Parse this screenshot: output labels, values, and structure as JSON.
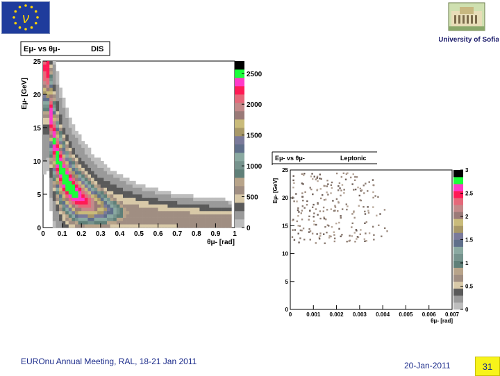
{
  "logos": {
    "eu_symbol": "ν",
    "university": "University of Sofia"
  },
  "footer": {
    "meeting": "EUROnu Annual Meeting, RAL, 18-21 Jan 2011",
    "date": "20-Jan-2011",
    "page": "31"
  },
  "colors": {
    "palette": [
      "#bdbdbd",
      "#9a9a9a",
      "#5a5a5a",
      "#d8c9a8",
      "#a08e82",
      "#b8a48a",
      "#5f7f78",
      "#76938d",
      "#8aa9a1",
      "#5f6f8a",
      "#7a7a9a",
      "#a89868",
      "#c9bb7a",
      "#9a7a78",
      "#c38a8a",
      "#e5687a",
      "#ff1a55",
      "#ff3ac8",
      "#1aff3a",
      "#000000"
    ]
  },
  "chart_data": [
    {
      "type": "heatmap",
      "title": "DIS",
      "stats_label": "Eμ- vs θμ-",
      "xlabel": "θμ- [rad]",
      "ylabel": "Eμ- [GeV]",
      "xlim": [
        0,
        1
      ],
      "ylim": [
        0,
        25
      ],
      "x_ticks": [
        "0",
        "0.1",
        "0.2",
        "0.3",
        "0.4",
        "0.5",
        "0.6",
        "0.7",
        "0.8",
        "0.9",
        "1"
      ],
      "y_ticks": [
        "0",
        "5",
        "10",
        "15",
        "20",
        "25"
      ],
      "z_ticks": [
        "0",
        "500",
        "1000",
        "1500",
        "2000",
        "2500"
      ],
      "zlim": [
        0,
        2700
      ],
      "description_of_shape": "counts concentrated along E ≈ 1/θ band, peak near θ≈0.1 rad, E≈8 GeV"
    },
    {
      "type": "heatmap",
      "title": "Leptonic",
      "stats_label": "Eμ- vs θμ-",
      "xlabel": "θμ- [rad]",
      "ylabel": "Eμ- [GeV]",
      "xlim": [
        0,
        0.007
      ],
      "ylim": [
        0,
        25
      ],
      "x_ticks": [
        "0",
        "0.001",
        "0.002",
        "0.003",
        "0.004",
        "0.005",
        "0.006",
        "0.007"
      ],
      "y_ticks": [
        "0",
        "5",
        "10",
        "15",
        "20",
        "25"
      ],
      "z_ticks": [
        "0",
        "0.5",
        "1",
        "1.5",
        "2",
        "2.5",
        "3"
      ],
      "zlim": [
        0,
        3
      ]
    }
  ]
}
